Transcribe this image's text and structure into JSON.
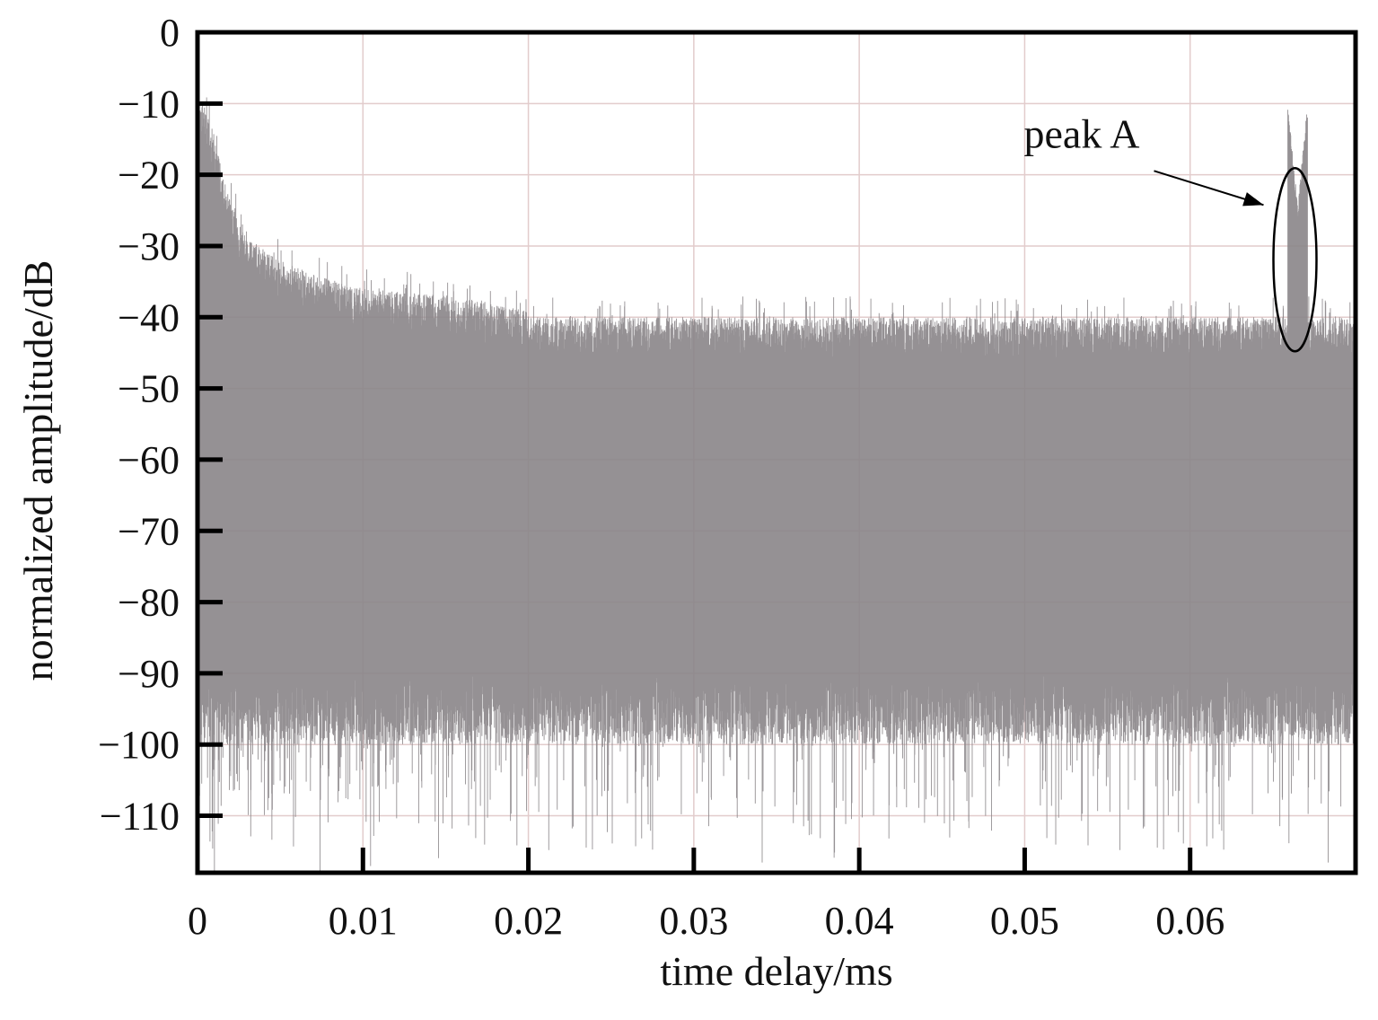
{
  "chart_data": {
    "type": "line",
    "title": "",
    "xlabel": "time delay/ms",
    "ylabel": "normalized amplitude/dB",
    "xlim": [
      0,
      0.07
    ],
    "ylim": [
      -118,
      0
    ],
    "x_ticks": [
      0,
      0.01,
      0.02,
      0.03,
      0.04,
      0.05,
      0.06
    ],
    "x_tick_labels": [
      "0",
      "0.01",
      "0.02",
      "0.03",
      "0.04",
      "0.05",
      "0.06"
    ],
    "y_ticks": [
      0,
      -10,
      -20,
      -30,
      -40,
      -50,
      -60,
      -70,
      -80,
      -90,
      -100,
      -110
    ],
    "y_tick_labels": [
      "0",
      "−10",
      "−20",
      "−30",
      "−40",
      "−50",
      "−60",
      "−70",
      "−80",
      "−90",
      "−100",
      "−110"
    ],
    "grid": true,
    "series_color": "#8a8588",
    "noise_floor_db": -40,
    "noise_lower_db": -95,
    "envelope_points": [
      {
        "x": 0.0005,
        "y": -10
      },
      {
        "x": 0.001,
        "y": -15
      },
      {
        "x": 0.002,
        "y": -24
      },
      {
        "x": 0.003,
        "y": -29
      },
      {
        "x": 0.005,
        "y": -32
      },
      {
        "x": 0.007,
        "y": -34
      },
      {
        "x": 0.01,
        "y": -36
      },
      {
        "x": 0.015,
        "y": -37
      },
      {
        "x": 0.02,
        "y": -39
      }
    ],
    "peaks": [
      {
        "x": 0.0665,
        "y": -25
      }
    ],
    "annotations": [
      {
        "text": "peak A",
        "target_x": 0.0665,
        "target_y": -25
      }
    ]
  }
}
